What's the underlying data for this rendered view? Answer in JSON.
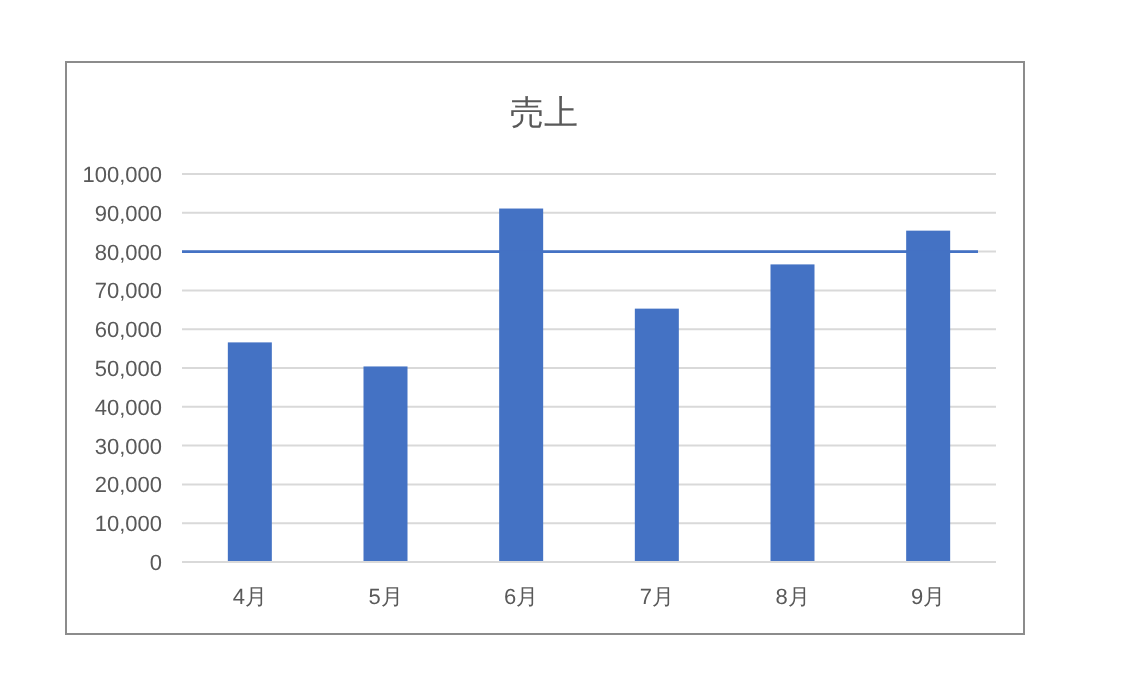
{
  "chart_data": {
    "type": "bar",
    "title": "売上",
    "categories": [
      "4月",
      "5月",
      "6月",
      "7月",
      "8月",
      "9月"
    ],
    "values": [
      56600,
      50400,
      91100,
      65300,
      76700,
      85400
    ],
    "color": "#4472c4",
    "ylim": [
      0,
      100000
    ],
    "yticks": [
      0,
      {
        "value": 10000,
        "label": "10,000"
      },
      {
        "value": 20000,
        "label": "20,000"
      },
      {
        "value": 30000,
        "label": "30,000"
      },
      {
        "value": 40000,
        "label": "40,000"
      },
      {
        "value": 50000,
        "label": "50,000"
      },
      {
        "value": 60000,
        "label": "60,000"
      },
      {
        "value": 70000,
        "label": "70,000"
      },
      {
        "value": 80000,
        "label": "80,000"
      },
      {
        "value": 90000,
        "label": "90,000"
      },
      {
        "value": 100000,
        "label": "100,000"
      }
    ],
    "grid": "y",
    "ref_lines": [
      {
        "axis": "y",
        "value": 80000,
        "color": "#4472c4"
      }
    ]
  }
}
